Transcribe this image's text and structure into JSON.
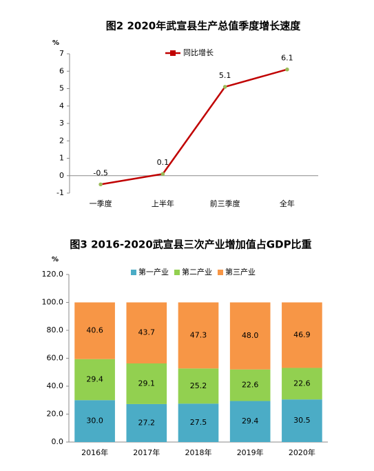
{
  "chart_data": [
    {
      "type": "line",
      "title": "图2  2020年武宣县生产总值季度增长速度",
      "y_unit": "%",
      "categories": [
        "一季度",
        "上半年",
        "前三季度",
        "全年"
      ],
      "series": [
        {
          "name": "同比增长",
          "color": "#c00000",
          "marker_color": "#9bbb59",
          "values": [
            -0.5,
            0.1,
            5.1,
            6.1
          ]
        }
      ],
      "ylim": [
        -1,
        7
      ],
      "yticks": [
        -1,
        0,
        1,
        2,
        3,
        4,
        5,
        6,
        7
      ],
      "grid": false,
      "legend": "top"
    },
    {
      "type": "stacked-bar",
      "title": "图3  2016-2020武宣县三次产业增加值占GDP比重",
      "y_unit": "%",
      "categories": [
        "2016年",
        "2017年",
        "2018年",
        "2019年",
        "2020年"
      ],
      "series": [
        {
          "name": "第一产业",
          "color": "#4bacc6",
          "values": [
            30.0,
            27.2,
            27.5,
            29.4,
            30.5
          ],
          "value_labels": [
            "30.0",
            "27.2",
            "27.5",
            "29.4",
            "30.5"
          ]
        },
        {
          "name": "第二产业",
          "color": "#92d050",
          "values": [
            29.4,
            29.1,
            25.2,
            22.6,
            22.6
          ],
          "value_labels": [
            "29.4",
            "29.1",
            "25.2",
            "22.6",
            "22.6"
          ]
        },
        {
          "name": "第三产业",
          "color": "#f79646",
          "values": [
            40.6,
            43.7,
            47.3,
            48.0,
            46.9
          ],
          "value_labels": [
            "40.6",
            "43.7",
            "47.3",
            "48.0",
            "46.9"
          ]
        }
      ],
      "ylim": [
        0,
        120
      ],
      "yticks": [
        {
          "value": 0,
          "label": "0.0"
        },
        {
          "value": 20,
          "label": "20.0"
        },
        {
          "value": 40,
          "label": "40.0"
        },
        {
          "value": 60,
          "label": "60.0"
        },
        {
          "value": 80,
          "label": "80.0"
        },
        {
          "value": 100,
          "label": "100.0"
        },
        {
          "value": 120,
          "label": "120.0"
        }
      ],
      "grid": false,
      "legend": "top"
    }
  ]
}
